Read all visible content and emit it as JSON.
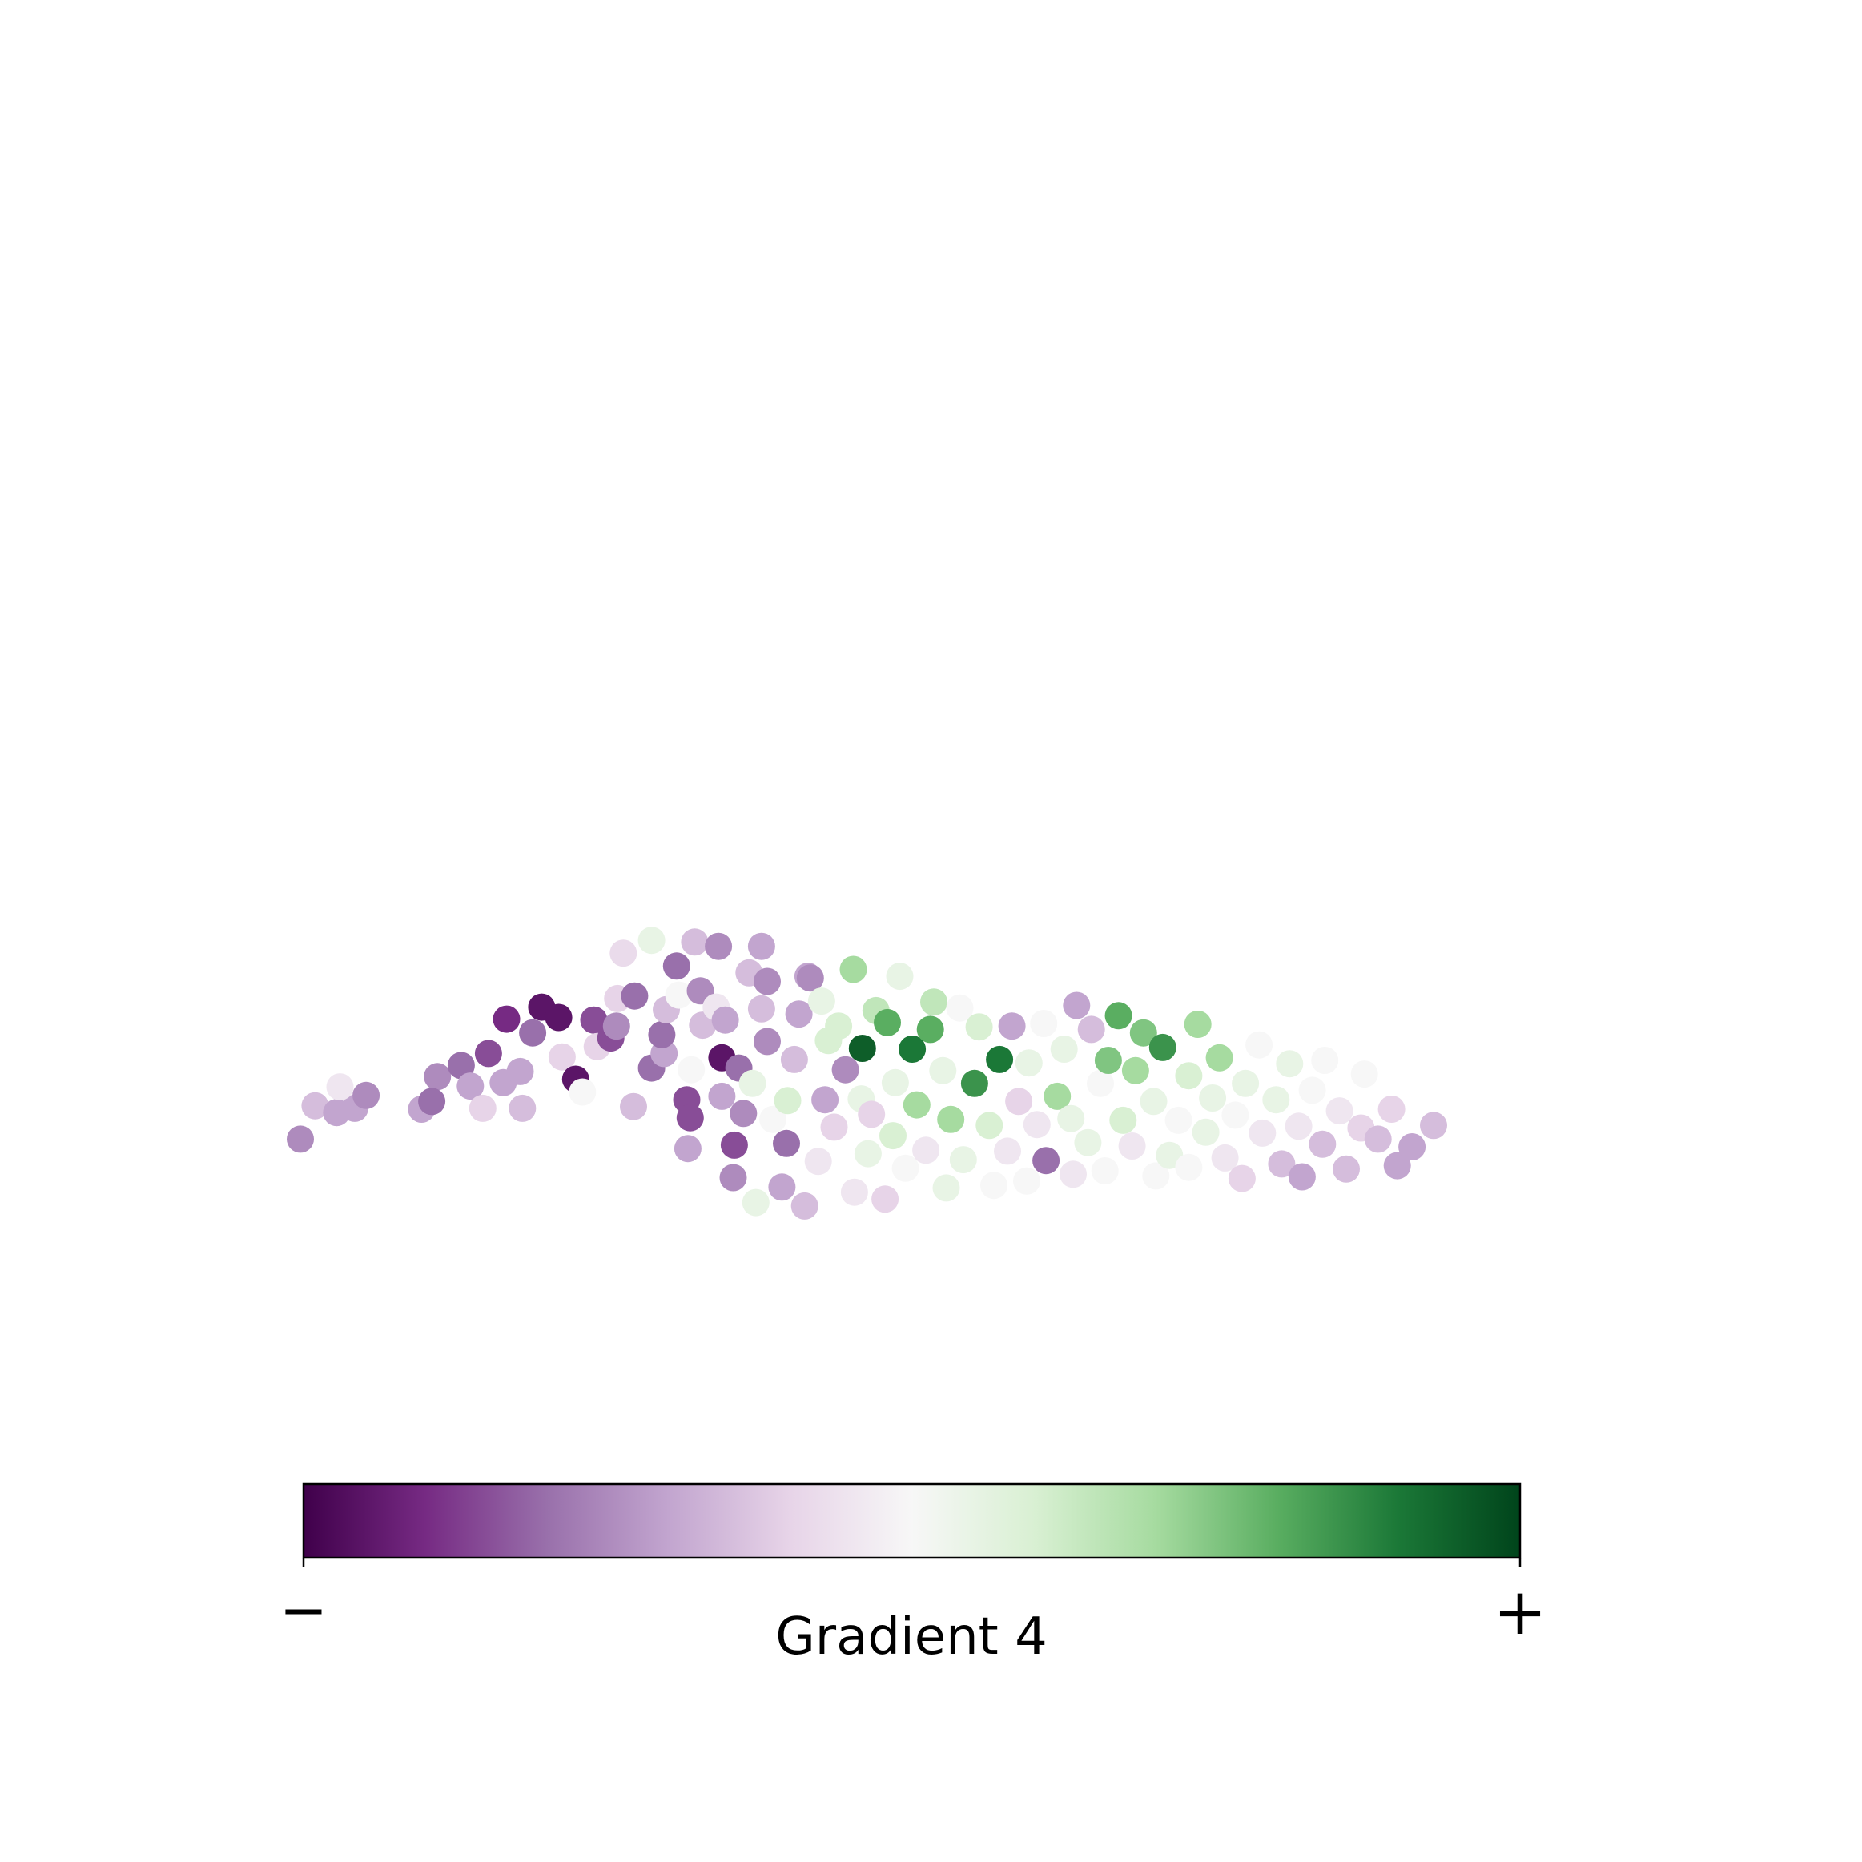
{
  "chart_data": {
    "type": "scatter",
    "title": "",
    "xlabel": "",
    "ylabel": "",
    "grid": false,
    "axes_visible": false,
    "xlim": [
      0,
      100
    ],
    "ylim": [
      0,
      100
    ],
    "colormap": "PRGn",
    "colormap_stops": [
      "#40004b",
      "#762a83",
      "#9970ab",
      "#c2a5cf",
      "#e7d4e8",
      "#f7f7f7",
      "#d9f0d3",
      "#a6dba0",
      "#5aae61",
      "#1b7837",
      "#00441b"
    ],
    "colorbar": {
      "label": "Gradient 4",
      "min_label": "−",
      "max_label": "+",
      "orientation": "horizontal",
      "placement": "bottom"
    },
    "series": [
      {
        "points": [
          [
            0.0,
            18.0,
            0.25
          ],
          [
            1.3,
            21.9,
            0.35
          ],
          [
            3.2,
            21.1,
            0.3
          ],
          [
            4.8,
            21.6,
            0.3
          ],
          [
            3.5,
            24.1,
            0.45
          ],
          [
            5.8,
            23.1,
            0.25
          ],
          [
            10.7,
            21.5,
            0.3
          ],
          [
            12.1,
            25.3,
            0.25
          ],
          [
            11.6,
            22.4,
            0.2
          ],
          [
            14.2,
            26.6,
            0.2
          ],
          [
            15.0,
            24.2,
            0.3
          ],
          [
            16.6,
            28.0,
            0.15
          ],
          [
            16.1,
            21.6,
            0.4
          ],
          [
            17.9,
            24.6,
            0.3
          ],
          [
            19.6,
            21.6,
            0.35
          ],
          [
            19.4,
            25.9,
            0.3
          ],
          [
            18.2,
            32.0,
            0.1
          ],
          [
            20.5,
            30.4,
            0.2
          ],
          [
            21.3,
            33.4,
            0.05
          ],
          [
            22.8,
            32.2,
            0.05
          ],
          [
            23.1,
            27.6,
            0.4
          ],
          [
            24.3,
            25.0,
            0.05
          ],
          [
            24.9,
            23.5,
            0.5
          ],
          [
            25.9,
            31.9,
            0.15
          ],
          [
            26.2,
            28.8,
            0.4
          ],
          [
            27.4,
            29.8,
            0.15
          ],
          [
            28.0,
            34.4,
            0.4
          ],
          [
            28.5,
            39.7,
            0.42
          ],
          [
            27.9,
            31.2,
            0.25
          ],
          [
            29.5,
            34.7,
            0.2
          ],
          [
            29.4,
            21.8,
            0.35
          ],
          [
            31.0,
            26.3,
            0.2
          ],
          [
            31.0,
            41.2,
            0.55
          ],
          [
            32.1,
            28.0,
            0.3
          ],
          [
            31.9,
            30.2,
            0.2
          ],
          [
            32.3,
            33.1,
            0.35
          ],
          [
            33.4,
            34.8,
            0.5
          ],
          [
            33.2,
            38.2,
            0.2
          ],
          [
            34.1,
            22.6,
            0.15
          ],
          [
            34.5,
            26.1,
            0.5
          ],
          [
            34.2,
            16.9,
            0.3
          ],
          [
            34.4,
            20.5,
            0.15
          ],
          [
            34.8,
            41.0,
            0.35
          ],
          [
            35.5,
            31.3,
            0.35
          ],
          [
            35.3,
            35.3,
            0.25
          ],
          [
            36.9,
            40.5,
            0.25
          ],
          [
            37.2,
            27.5,
            0.05
          ],
          [
            37.2,
            23.0,
            0.3
          ],
          [
            36.7,
            33.4,
            0.45
          ],
          [
            37.5,
            31.9,
            0.3
          ],
          [
            38.2,
            13.5,
            0.25
          ],
          [
            38.3,
            17.3,
            0.15
          ],
          [
            38.7,
            26.3,
            0.2
          ],
          [
            39.6,
            37.4,
            0.35
          ],
          [
            39.1,
            21.0,
            0.25
          ],
          [
            39.9,
            24.5,
            0.55
          ],
          [
            40.7,
            33.2,
            0.35
          ],
          [
            41.2,
            29.4,
            0.25
          ],
          [
            40.2,
            10.6,
            0.55
          ],
          [
            40.7,
            40.5,
            0.3
          ],
          [
            41.2,
            36.4,
            0.25
          ],
          [
            41.7,
            20.3,
            0.5
          ],
          [
            42.5,
            12.4,
            0.3
          ],
          [
            42.9,
            17.5,
            0.2
          ],
          [
            43.0,
            22.5,
            0.6
          ],
          [
            43.6,
            27.3,
            0.35
          ],
          [
            44.0,
            32.6,
            0.3
          ],
          [
            44.5,
            10.2,
            0.35
          ],
          [
            44.8,
            37.0,
            0.3
          ],
          [
            45.0,
            36.8,
            0.25
          ],
          [
            45.7,
            15.4,
            0.45
          ],
          [
            46.0,
            34.1,
            0.55
          ],
          [
            46.3,
            22.6,
            0.3
          ],
          [
            46.6,
            29.5,
            0.6
          ],
          [
            47.1,
            19.4,
            0.4
          ],
          [
            47.5,
            31.2,
            0.6
          ],
          [
            48.1,
            26.1,
            0.25
          ],
          [
            48.9,
            11.8,
            0.45
          ],
          [
            48.8,
            37.8,
            0.7
          ],
          [
            49.5,
            22.7,
            0.55
          ],
          [
            49.6,
            28.6,
            0.95
          ],
          [
            50.1,
            16.3,
            0.55
          ],
          [
            50.8,
            33.0,
            0.65
          ],
          [
            50.4,
            20.9,
            0.4
          ],
          [
            51.6,
            11.0,
            0.4
          ],
          [
            51.8,
            31.6,
            0.8
          ],
          [
            52.3,
            18.4,
            0.6
          ],
          [
            52.5,
            24.6,
            0.55
          ],
          [
            52.9,
            37.0,
            0.55
          ],
          [
            53.4,
            14.6,
            0.5
          ],
          [
            54.0,
            28.5,
            0.9
          ],
          [
            54.4,
            22.0,
            0.7
          ],
          [
            55.2,
            16.7,
            0.45
          ],
          [
            55.6,
            30.8,
            0.8
          ],
          [
            55.9,
            34.0,
            0.65
          ],
          [
            56.7,
            26.0,
            0.55
          ],
          [
            57.4,
            20.3,
            0.7
          ],
          [
            57.0,
            12.3,
            0.55
          ],
          [
            58.2,
            33.3,
            0.5
          ],
          [
            58.5,
            15.6,
            0.55
          ],
          [
            59.5,
            24.5,
            0.85
          ],
          [
            59.9,
            31.1,
            0.6
          ],
          [
            60.8,
            19.6,
            0.6
          ],
          [
            61.2,
            12.6,
            0.5
          ],
          [
            61.7,
            27.3,
            0.9
          ],
          [
            62.4,
            16.6,
            0.45
          ],
          [
            62.8,
            31.2,
            0.3
          ],
          [
            63.4,
            22.4,
            0.4
          ],
          [
            64.1,
            13.1,
            0.5
          ],
          [
            64.3,
            26.9,
            0.55
          ],
          [
            65.0,
            19.7,
            0.45
          ],
          [
            65.6,
            31.5,
            0.5
          ],
          [
            65.8,
            15.5,
            0.2
          ],
          [
            66.8,
            23.0,
            0.7
          ],
          [
            67.4,
            28.5,
            0.55
          ],
          [
            68.0,
            20.4,
            0.55
          ],
          [
            68.2,
            13.9,
            0.45
          ],
          [
            68.5,
            33.6,
            0.3
          ],
          [
            69.5,
            17.6,
            0.55
          ],
          [
            69.8,
            30.8,
            0.35
          ],
          [
            70.6,
            24.5,
            0.5
          ],
          [
            71.0,
            14.3,
            0.5
          ],
          [
            71.3,
            27.2,
            0.75
          ],
          [
            72.2,
            32.4,
            0.8
          ],
          [
            72.6,
            20.2,
            0.6
          ],
          [
            73.4,
            17.2,
            0.45
          ],
          [
            73.7,
            26.0,
            0.7
          ],
          [
            74.4,
            30.4,
            0.75
          ],
          [
            75.3,
            22.4,
            0.55
          ],
          [
            75.5,
            13.7,
            0.5
          ],
          [
            76.1,
            28.7,
            0.85
          ],
          [
            76.7,
            16.1,
            0.55
          ],
          [
            77.5,
            20.2,
            0.5
          ],
          [
            78.4,
            25.4,
            0.6
          ],
          [
            78.4,
            14.7,
            0.5
          ],
          [
            79.2,
            31.4,
            0.7
          ],
          [
            79.9,
            18.8,
            0.55
          ],
          [
            80.5,
            22.8,
            0.55
          ],
          [
            81.1,
            27.5,
            0.7
          ],
          [
            81.6,
            15.8,
            0.45
          ],
          [
            82.5,
            20.8,
            0.5
          ],
          [
            83.4,
            24.5,
            0.55
          ],
          [
            83.1,
            13.4,
            0.4
          ],
          [
            84.9,
            18.7,
            0.45
          ],
          [
            84.6,
            29.0,
            0.5
          ],
          [
            86.1,
            22.6,
            0.55
          ],
          [
            86.6,
            15.1,
            0.35
          ],
          [
            87.3,
            26.8,
            0.55
          ],
          [
            88.1,
            19.5,
            0.45
          ],
          [
            88.4,
            13.6,
            0.3
          ],
          [
            89.3,
            23.7,
            0.5
          ],
          [
            90.2,
            17.4,
            0.35
          ],
          [
            90.4,
            27.2,
            0.5
          ],
          [
            91.7,
            21.3,
            0.45
          ],
          [
            92.3,
            14.5,
            0.35
          ],
          [
            93.6,
            19.3,
            0.4
          ],
          [
            93.9,
            25.6,
            0.5
          ],
          [
            95.1,
            18.0,
            0.35
          ],
          [
            96.3,
            21.5,
            0.4
          ],
          [
            96.8,
            14.9,
            0.3
          ],
          [
            98.1,
            17.1,
            0.3
          ],
          [
            100.0,
            19.6,
            0.35
          ]
        ]
      }
    ]
  }
}
